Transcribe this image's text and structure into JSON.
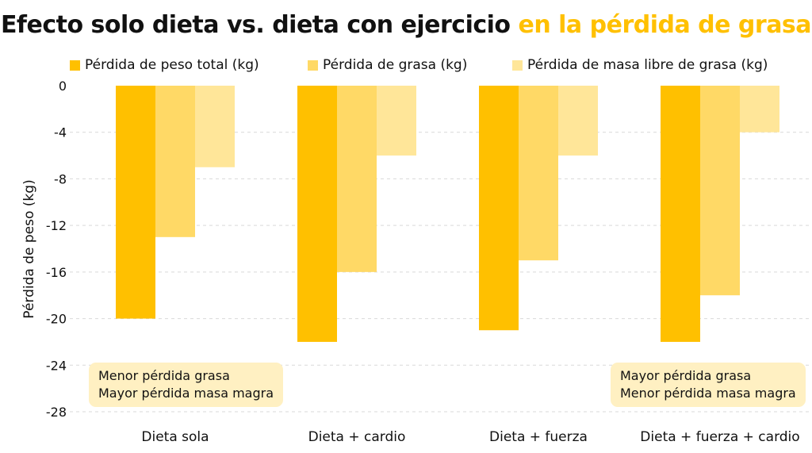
{
  "title": {
    "main": "Efecto solo dieta vs. dieta con ejercicio ",
    "highlight": "en la pérdida de grasa"
  },
  "colors": {
    "series1": "#FFC000",
    "series2": "#FFD966",
    "series3": "#FFE699",
    "note_bg": "#FFF0C2",
    "title_highlight": "#FFC000"
  },
  "notes": {
    "left": {
      "line1": "Menor pérdida grasa",
      "line2": "Mayor pérdida masa magra"
    },
    "right": {
      "line1": "Mayor pérdida grasa",
      "line2": "Menor pérdida masa magra"
    }
  },
  "chart_data": {
    "type": "bar",
    "ylabel": "Pérdida de peso (kg)",
    "ylim": [
      -28,
      0
    ],
    "yticks": [
      0,
      -4,
      -8,
      -12,
      -16,
      -20,
      -24,
      -28
    ],
    "grid": true,
    "legend": "top",
    "categories": [
      "Dieta sola",
      "Dieta + cardio",
      "Dieta + fuerza",
      "Dieta + fuerza + cardio"
    ],
    "series": [
      {
        "name": "Pérdida de peso total (kg)",
        "values": [
          -20,
          -22,
          -21,
          -22
        ]
      },
      {
        "name": "Pérdida de grasa (kg)",
        "values": [
          -13,
          -16,
          -15,
          -18
        ]
      },
      {
        "name": "Pérdida de masa libre de grasa (kg)",
        "values": [
          -7,
          -6,
          -6,
          -4
        ]
      }
    ]
  }
}
